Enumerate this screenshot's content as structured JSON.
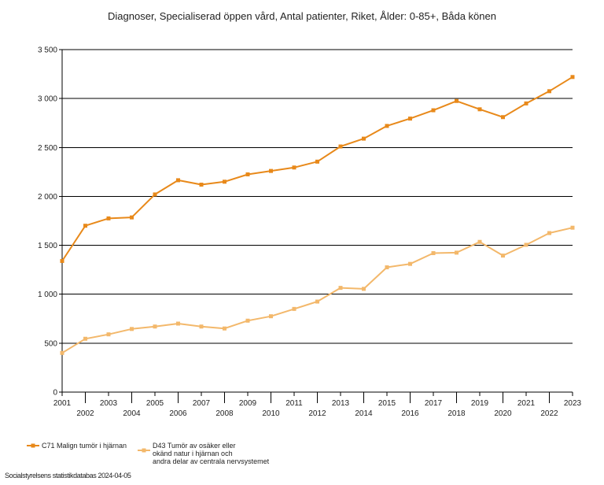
{
  "chart_data": {
    "type": "line",
    "title": "Diagnoser, Specialiserad öppen vård, Antal patienter, Riket, Ålder: 0-85+, Båda könen",
    "xlabel": "",
    "ylabel": "",
    "x": [
      2001,
      2002,
      2003,
      2004,
      2005,
      2006,
      2007,
      2008,
      2009,
      2010,
      2011,
      2012,
      2013,
      2014,
      2015,
      2016,
      2017,
      2018,
      2019,
      2020,
      2021,
      2022,
      2023
    ],
    "x_tick_labels": [
      "2001",
      "2002",
      "2003",
      "2004",
      "2005",
      "2006",
      "2007",
      "2008",
      "2009",
      "2010",
      "2011",
      "2012",
      "2013",
      "2014",
      "2015",
      "2016",
      "2017",
      "2018",
      "2019",
      "2020",
      "2021",
      "2022",
      "2023"
    ],
    "ylim": [
      0,
      3500
    ],
    "y_ticks": [
      0,
      500,
      1000,
      1500,
      2000,
      2500,
      3000,
      3500
    ],
    "y_tick_labels": [
      "0",
      "500",
      "1 000",
      "1 500",
      "2 000",
      "2 500",
      "3 000",
      "3 500"
    ],
    "grid": "horizontal",
    "legend_position": "bottom-left",
    "series": [
      {
        "name": "C71 Malign tumör i hjärnan",
        "legend_lines": [
          "C71 Malign tumör i hjärnan"
        ],
        "color": "#e8891a",
        "values": [
          1340,
          1700,
          1775,
          1785,
          2020,
          2165,
          2120,
          2150,
          2225,
          2260,
          2295,
          2355,
          2510,
          2590,
          2720,
          2795,
          2880,
          2975,
          2890,
          2810,
          2950,
          3075,
          3220
        ]
      },
      {
        "name": "D43 Tumör av osäker eller okänd natur i hjärnan och andra delar av centrala nervsystemet",
        "legend_lines": [
          "D43 Tumör av osäker eller",
          "okänd natur i hjärnan och",
          "andra delar av centrala nervsystemet"
        ],
        "color": "#f3b86b",
        "values": [
          400,
          545,
          590,
          645,
          670,
          700,
          670,
          650,
          730,
          775,
          850,
          925,
          1065,
          1055,
          1275,
          1310,
          1420,
          1425,
          1535,
          1395,
          1505,
          1625,
          1680
        ]
      }
    ]
  },
  "source": "Socialstyrelsens statistikdatabas 2024-04-05"
}
